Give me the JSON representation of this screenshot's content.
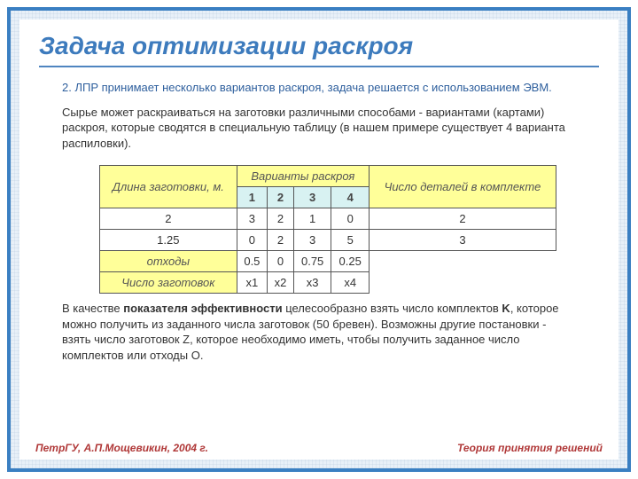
{
  "title": "Задача оптимизации раскроя",
  "lead": "2. ЛПР принимает несколько вариантов раскроя, задача решается с использованием ЭВМ.",
  "para1": "Сырье может раскраиваться на заготовки различными способами - вариантами (картами) раскроя, которые сводятся в специальную таблицу (в нашем примере существует 4 варианта распиловки).",
  "para2_a": "В качестве ",
  "para2_b": "показателя эффективности",
  "para2_c": " целесообразно взять число комплектов ",
  "para2_d": "K",
  "para2_e": ", которое можно получить из заданного числа заготовок (50 бревен). Возможны другие постановки - взять число заготовок Z, которое необходимо иметь, чтобы получить заданное число комплектов или отходы O.",
  "table": {
    "h_len": "Длина заготовки, м.",
    "h_variants": "Варианты раскроя",
    "h_count": "Число деталей в комплекте",
    "cols": [
      "1",
      "2",
      "3",
      "4"
    ],
    "rows": [
      {
        "head": "2",
        "cells": [
          "3",
          "2",
          "1",
          "0"
        ],
        "last": "2"
      },
      {
        "head": "1.25",
        "cells": [
          "0",
          "2",
          "3",
          "5"
        ],
        "last": "3"
      }
    ],
    "waste": {
      "head": "отходы",
      "cells": [
        "0.5",
        "0",
        "0.75",
        "0.25"
      ]
    },
    "countRow": {
      "head": "Число заготовок",
      "cells": [
        "x1",
        "x2",
        "x3",
        "x4"
      ]
    }
  },
  "footer": {
    "left": "ПетрГУ, А.П.Мощевикин, 2004 г.",
    "right": "Теория принятия решений"
  },
  "colors": {
    "accent": "#3d7bbd",
    "border": "#3a7fc2",
    "yellow": "#ffff99",
    "blue": "#d8f2f2",
    "footer": "#b03838"
  }
}
